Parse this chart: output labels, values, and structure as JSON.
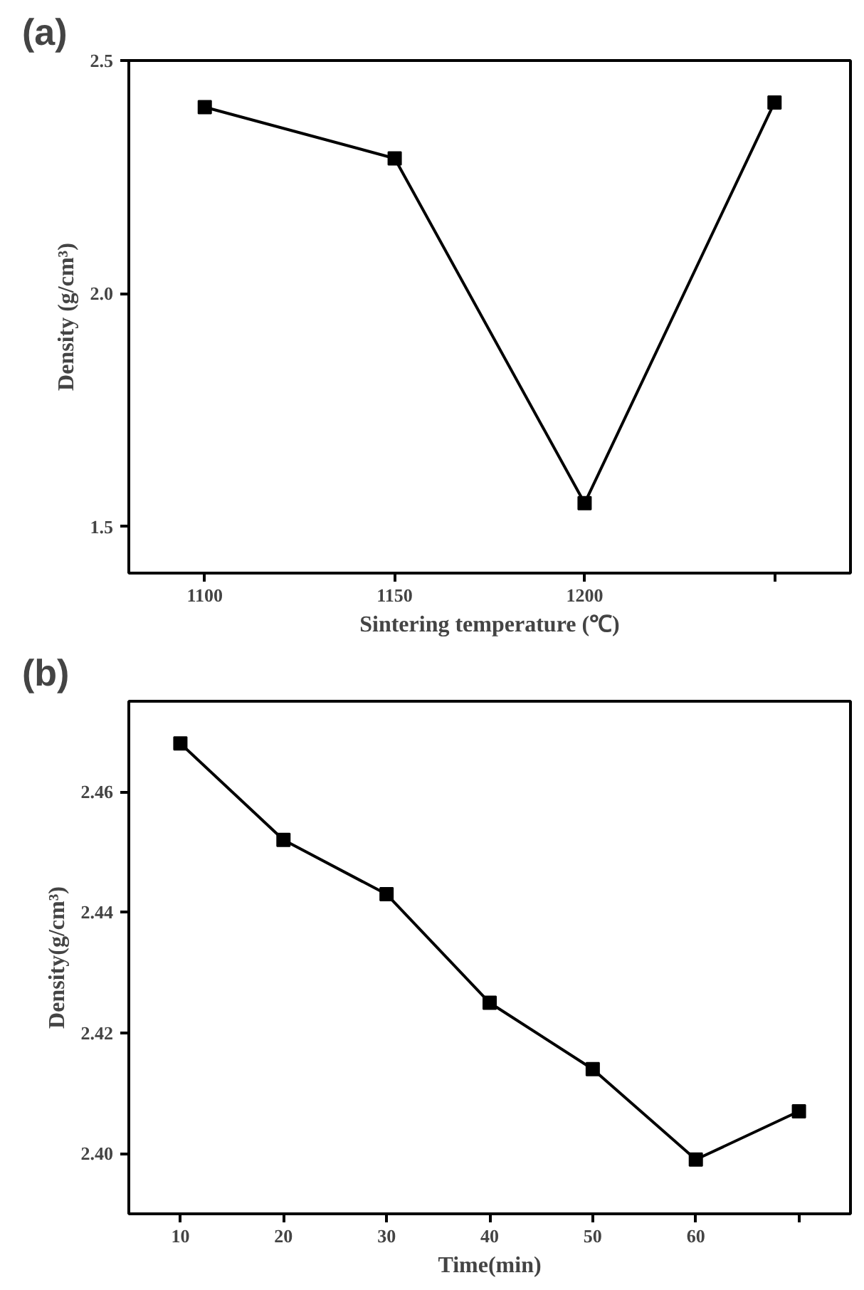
{
  "chart_data": [
    {
      "type": "line",
      "title": "(a)",
      "xlabel": "Sintering temperature (℃)",
      "ylabel": "Density (g/cm³)",
      "categories": [
        "1100",
        "1150",
        "1200",
        null
      ],
      "values": [
        2.4,
        2.29,
        1.55,
        2.41
      ],
      "color": "#000000",
      "ylim": [
        1.4,
        2.5
      ],
      "yticks": [
        {
          "value": 1.5,
          "label": "1.5"
        },
        {
          "value": 2.0,
          "label": "2.0"
        },
        {
          "value": 2.5,
          "label": "2.5"
        }
      ],
      "marker": "square",
      "line_style": "solid",
      "grid": false
    },
    {
      "type": "line",
      "title": "(b)",
      "xlabel": "Time(min)",
      "ylabel": "Density(g/cm³)",
      "categories": [
        "10",
        "20",
        "30",
        "40",
        "50",
        "60",
        null
      ],
      "values": [
        2.468,
        2.452,
        2.443,
        2.425,
        2.414,
        2.399,
        2.407
      ],
      "color": "#000000",
      "ylim": [
        2.39,
        2.475
      ],
      "yticks": [
        {
          "value": 2.4,
          "label": "2.40"
        },
        {
          "value": 2.42,
          "label": "2.42"
        },
        {
          "value": 2.44,
          "label": "2.44"
        },
        {
          "value": 2.46,
          "label": "2.46"
        }
      ],
      "marker": "square",
      "line_style": "solid",
      "grid": false
    }
  ]
}
